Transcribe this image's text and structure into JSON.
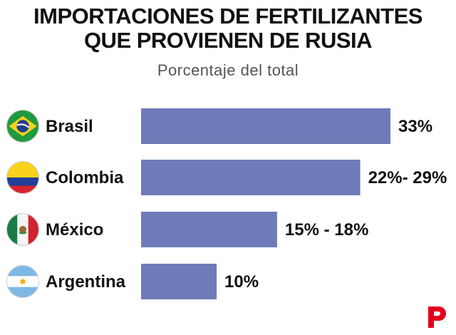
{
  "header": {
    "title_line1": "IMPORTACIONES DE FERTILIZANTES",
    "title_line2": "QUE PROVIENEN DE RUSIA",
    "subtitle": "Porcentaje del total"
  },
  "colors": {
    "bar": "#6f7bb8",
    "text": "#111111",
    "logo": "#e3001b"
  },
  "chart_data": {
    "type": "bar",
    "orientation": "horizontal",
    "title": "IMPORTACIONES DE FERTILIZANTES QUE PROVIENEN DE RUSIA",
    "subtitle": "Porcentaje del total",
    "xlim": [
      0,
      35
    ],
    "grid": false,
    "categories": [
      "Brasil",
      "Colombia",
      "México",
      "Argentina"
    ],
    "values": [
      33,
      29,
      18,
      10
    ],
    "ranges": [
      [
        33,
        33
      ],
      [
        22,
        29
      ],
      [
        15,
        18
      ],
      [
        10,
        10
      ]
    ],
    "value_labels": [
      "33%",
      "22%- 29%",
      "15% - 18%",
      "10%"
    ],
    "flag_icons": [
      "brazil-flag-icon",
      "colombia-flag-icon",
      "mexico-flag-icon",
      "argentina-flag-icon"
    ]
  }
}
